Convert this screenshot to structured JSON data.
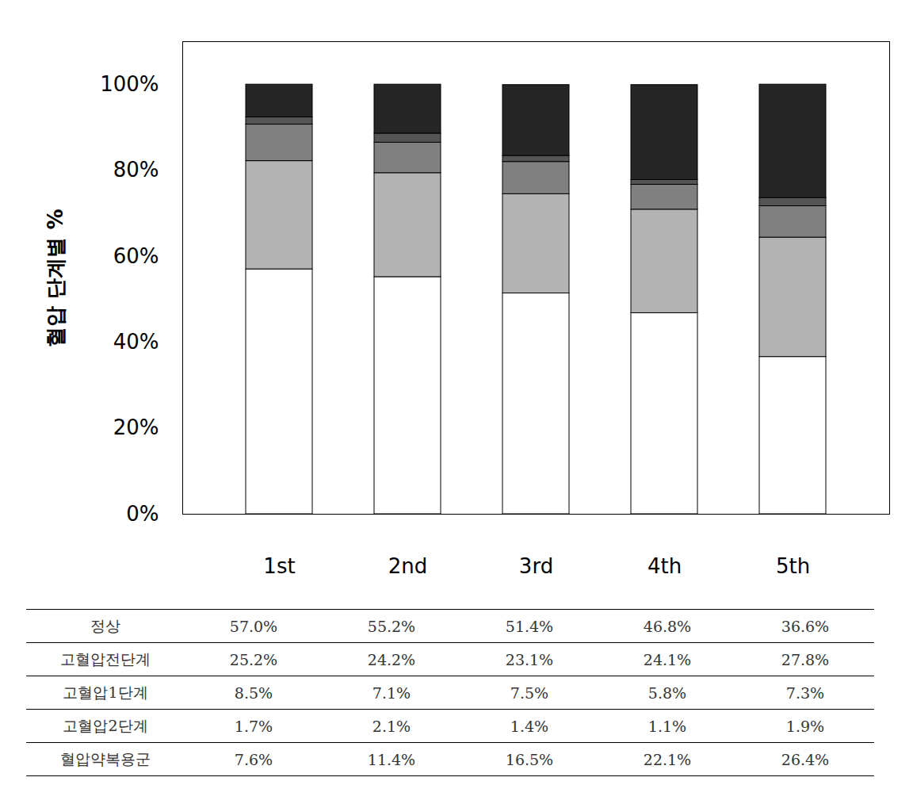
{
  "chart_data": {
    "type": "bar",
    "stacked": true,
    "y_label": "혈압 단계별 %",
    "categories": [
      "1st",
      "2nd",
      "3rd",
      "4th",
      "5th"
    ],
    "series": [
      {
        "name": "정상",
        "color": "#ffffff",
        "values": [
          57.0,
          55.2,
          51.4,
          46.8,
          36.6
        ],
        "value_labels": [
          "57.0%",
          "55.2%",
          "51.4%",
          "46.8%",
          "36.6%"
        ]
      },
      {
        "name": "고혈압전단계",
        "color": "#b3b3b3",
        "values": [
          25.2,
          24.2,
          23.1,
          24.1,
          27.8
        ],
        "value_labels": [
          "25.2%",
          "24.2%",
          "23.1%",
          "24.1%",
          "27.8%"
        ]
      },
      {
        "name": "고혈압1단계",
        "color": "#808080",
        "values": [
          8.5,
          7.1,
          7.5,
          5.8,
          7.3
        ],
        "value_labels": [
          "8.5%",
          "7.1%",
          "7.5%",
          "5.8%",
          "7.3%"
        ]
      },
      {
        "name": "고혈압2단계",
        "color": "#555555",
        "values": [
          1.7,
          2.1,
          1.4,
          1.1,
          1.9
        ],
        "value_labels": [
          "1.7%",
          "2.1%",
          "1.4%",
          "1.1%",
          "1.9%"
        ]
      },
      {
        "name": "혈압약복용군",
        "color": "#262626",
        "values": [
          7.6,
          11.4,
          16.5,
          22.1,
          26.4
        ],
        "value_labels": [
          "7.6%",
          "11.4%",
          "16.5%",
          "22.1%",
          "26.4%"
        ]
      }
    ],
    "ylim": [
      0,
      110
    ],
    "yticks": [
      {
        "value": 0,
        "label": "0%"
      },
      {
        "value": 20,
        "label": "20%"
      },
      {
        "value": 40,
        "label": "40%"
      },
      {
        "value": 60,
        "label": "60%"
      },
      {
        "value": 80,
        "label": "80%"
      },
      {
        "value": 100,
        "label": "100%"
      }
    ],
    "grid": false,
    "legend": "bottom"
  }
}
